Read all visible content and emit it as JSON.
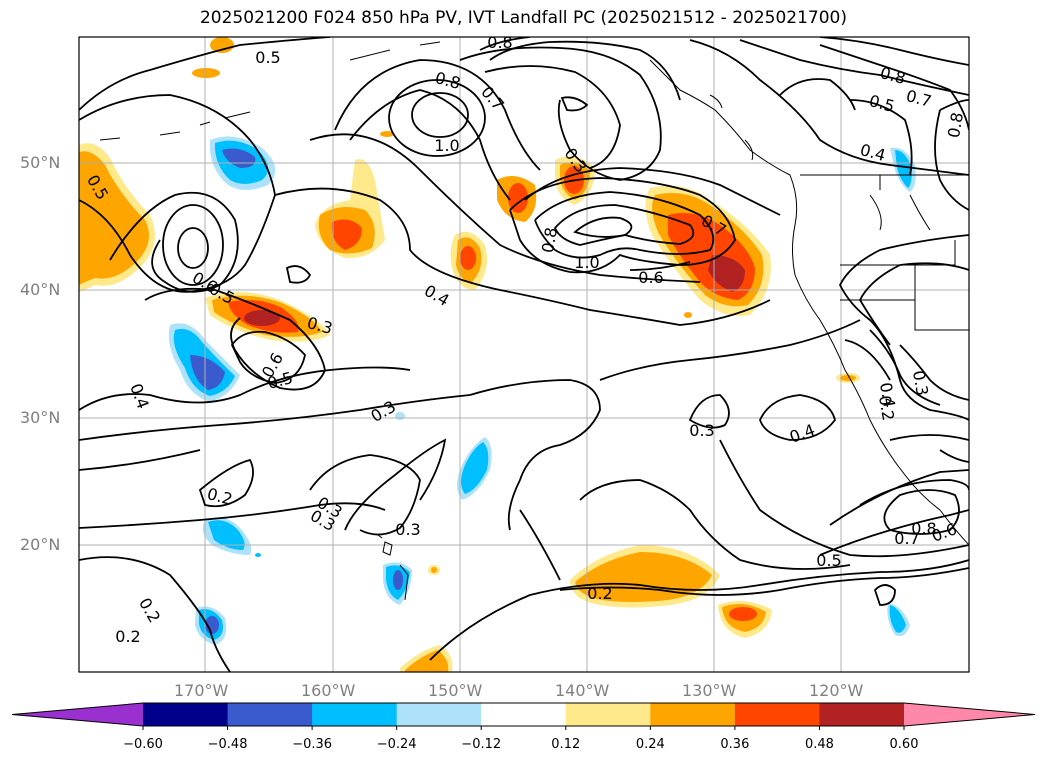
{
  "title": "2025021200 F024 850 hPa PV, IVT Landfall PC (2025021512 - 2025021700)",
  "latitude_labels": [
    "50°N",
    "40°N",
    "30°N",
    "20°N"
  ],
  "longitude_labels": [
    "170°W",
    "160°W",
    "150°W",
    "140°W",
    "130°W",
    "120°W"
  ],
  "colorbar": {
    "tick_labels": [
      "−0.60",
      "−0.48",
      "−0.36",
      "−0.24",
      "−0.12",
      "0.12",
      "0.24",
      "0.36",
      "0.48",
      "0.60"
    ],
    "colors": [
      "#9b30d0",
      "#00008b",
      "#3a5bcd",
      "#00bfff",
      "#aee2fa",
      "#ffffff",
      "#ffe98a",
      "#ffa500",
      "#ff4500",
      "#b22222",
      "#ff88aa"
    ]
  },
  "contour_labels": [
    "0.5",
    "0.8",
    "0.8",
    "0.7",
    "1.0",
    "0.8",
    "0.7",
    "0.5",
    "0.8",
    "0.4",
    "0.3",
    "0.8",
    "1.0",
    "0.6",
    "0.7",
    "0.5",
    "0.6",
    "0.5",
    "0.3",
    "0.4",
    "0.6",
    "0.5",
    "0.4",
    "0.3",
    "0.3",
    "0.4",
    "0.3",
    "0.2",
    "0.3",
    "0.3",
    "0.3",
    "0.2",
    "0.8",
    "0.7",
    "0.6",
    "0.5",
    "0.2",
    "0.2",
    "0.2",
    "0.4"
  ],
  "colors": {
    "contour": "#000000",
    "grid": "#b0b0b0",
    "coast": "#000000"
  }
}
